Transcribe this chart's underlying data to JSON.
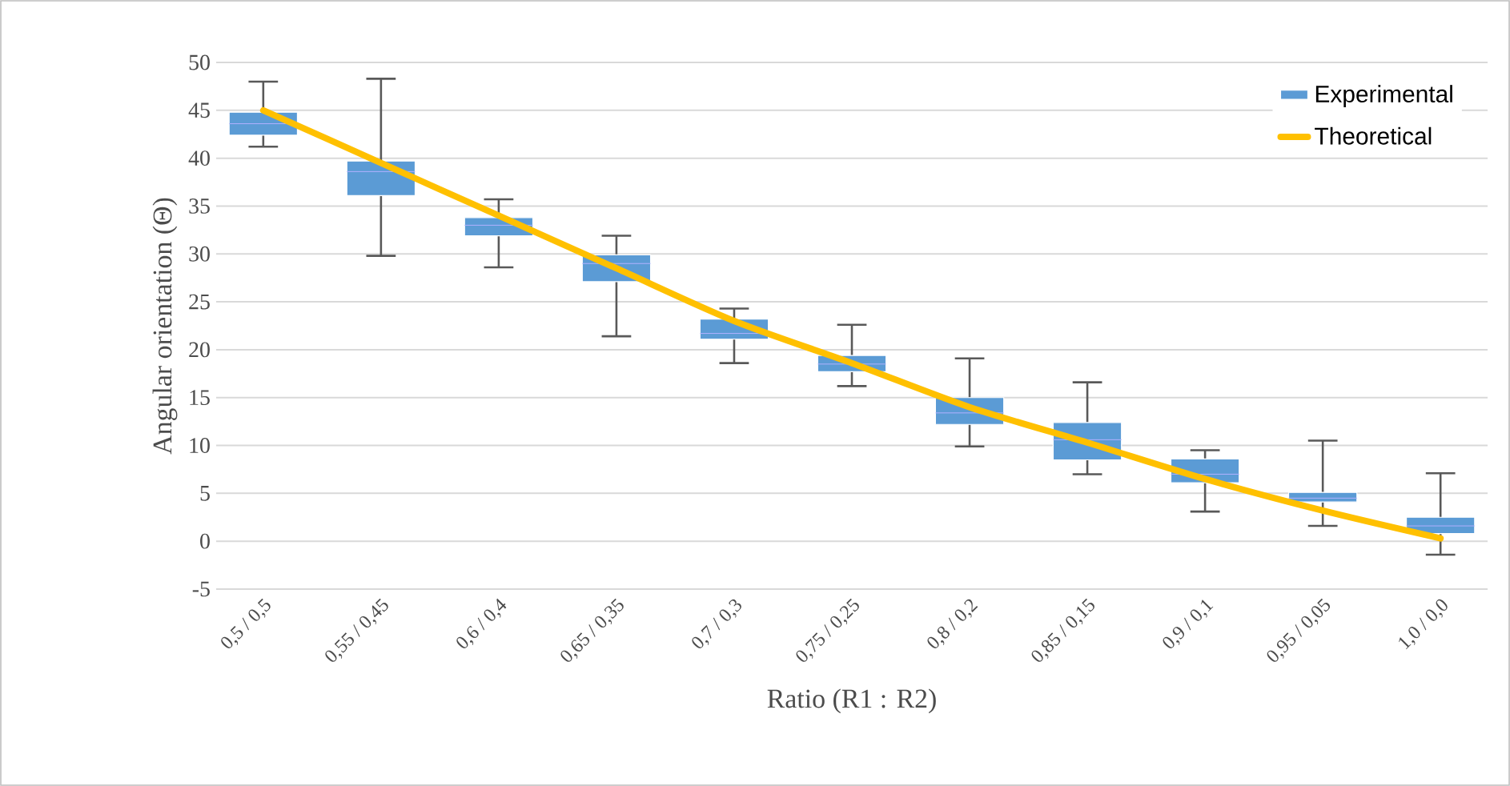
{
  "chart_data": {
    "type": "box",
    "xlabel": "Ratio (R1 : R2)",
    "ylabel": "Angular orientation (Θ)",
    "categories": [
      "0,5 / 0,5",
      "0,55 / 0,45",
      "0,6 / 0,4",
      "0,65 / 0,35",
      "0,7 / 0,3",
      "0,75 / 0,25",
      "0,8 / 0,2",
      "0,85 / 0,15",
      "0,9 / 0,1",
      "0,95 / 0,05",
      "1,0 / 0,0"
    ],
    "series": [
      {
        "name": "Experimental",
        "color": "#5b9bd5",
        "boxes": [
          {
            "low": 41.2,
            "q1": 42.4,
            "median": 43.6,
            "q3": 44.8,
            "high": 48.0
          },
          {
            "low": 29.8,
            "q1": 36.1,
            "median": 38.6,
            "q3": 39.7,
            "high": 48.3
          },
          {
            "low": 28.6,
            "q1": 31.9,
            "median": 33.0,
            "q3": 33.8,
            "high": 35.7
          },
          {
            "low": 21.4,
            "q1": 27.1,
            "median": 29.0,
            "q3": 29.9,
            "high": 31.9
          },
          {
            "low": 18.6,
            "q1": 21.1,
            "median": 21.7,
            "q3": 23.2,
            "high": 24.3
          },
          {
            "low": 16.2,
            "q1": 17.7,
            "median": 18.5,
            "q3": 19.4,
            "high": 22.6
          },
          {
            "low": 9.9,
            "q1": 12.2,
            "median": 13.4,
            "q3": 15.0,
            "high": 19.1
          },
          {
            "low": 7.0,
            "q1": 8.5,
            "median": 10.6,
            "q3": 12.4,
            "high": 16.6
          },
          {
            "low": 3.1,
            "q1": 6.1,
            "median": 7.0,
            "q3": 8.6,
            "high": 9.5
          },
          {
            "low": 1.6,
            "q1": 4.1,
            "median": 4.5,
            "q3": 5.1,
            "high": 10.5
          },
          {
            "low": -1.4,
            "q1": 0.8,
            "median": 1.6,
            "q3": 2.5,
            "high": 7.1
          }
        ]
      },
      {
        "name": "Theoretical",
        "type": "line",
        "color": "#ffc000",
        "values": [
          45,
          39.5,
          34,
          28.5,
          23,
          18.6,
          14,
          10.3,
          6.5,
          3.2,
          0.3
        ]
      }
    ],
    "ylim": [
      -5,
      50
    ],
    "yticks": [
      -5,
      0,
      5,
      10,
      15,
      20,
      25,
      30,
      35,
      40,
      45,
      50
    ],
    "grid": "y",
    "legend": "top right"
  }
}
